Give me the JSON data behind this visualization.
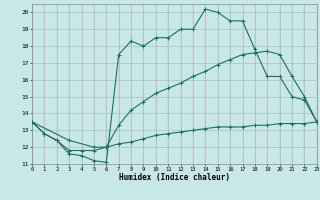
{
  "xlabel": "Humidex (Indice chaleur)",
  "bg_color": "#c8e8e8",
  "line_color": "#1a7060",
  "xlim": [
    0,
    23
  ],
  "ylim": [
    11,
    20.5
  ],
  "xticks": [
    0,
    1,
    2,
    3,
    4,
    5,
    6,
    7,
    8,
    9,
    10,
    11,
    12,
    13,
    14,
    15,
    16,
    17,
    18,
    19,
    20,
    21,
    22,
    23
  ],
  "yticks": [
    11,
    12,
    13,
    14,
    15,
    16,
    17,
    18,
    19,
    20
  ],
  "line1_x": [
    0,
    1,
    2,
    3,
    4,
    5,
    6,
    7,
    8,
    9,
    10,
    11,
    12,
    13,
    14,
    15,
    16,
    17,
    18,
    19,
    20,
    21,
    22,
    23
  ],
  "line1_y": [
    13.5,
    12.8,
    12.4,
    11.6,
    11.5,
    11.2,
    11.1,
    17.5,
    18.3,
    18.0,
    18.5,
    18.5,
    19.0,
    19.0,
    20.2,
    20.0,
    19.5,
    19.5,
    17.8,
    16.2,
    16.2,
    15.0,
    14.8,
    13.5
  ],
  "line2_x": [
    0,
    3,
    5,
    6,
    7,
    8,
    9,
    10,
    11,
    12,
    13,
    14,
    15,
    16,
    17,
    18,
    19,
    20,
    21,
    22,
    23
  ],
  "line2_y": [
    13.5,
    12.4,
    12.0,
    12.0,
    13.3,
    14.2,
    14.7,
    15.2,
    15.5,
    15.8,
    16.2,
    16.5,
    16.9,
    17.2,
    17.5,
    17.6,
    17.7,
    17.5,
    16.2,
    15.0,
    13.5
  ],
  "line3_x": [
    0,
    1,
    2,
    3,
    4,
    5,
    6,
    7,
    8,
    9,
    10,
    11,
    12,
    13,
    14,
    15,
    16,
    17,
    18,
    19,
    20,
    21,
    22,
    23
  ],
  "line3_y": [
    13.5,
    12.8,
    12.4,
    11.8,
    11.8,
    11.8,
    12.0,
    12.2,
    12.3,
    12.5,
    12.7,
    12.8,
    12.9,
    13.0,
    13.1,
    13.2,
    13.2,
    13.2,
    13.3,
    13.3,
    13.4,
    13.4,
    13.4,
    13.5
  ],
  "hgrid_color": "#a0c4c4",
  "vgrid_color": "#c8a0a0"
}
